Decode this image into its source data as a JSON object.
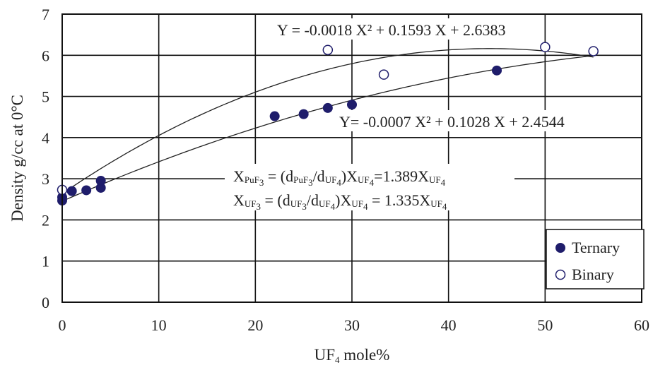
{
  "chart_data": {
    "type": "scatter",
    "xlabel": {
      "main": "UF",
      "sub": "4",
      "rest": " mole%"
    },
    "ylabel": "Density g/cc at 0°C",
    "xlim": [
      0,
      60
    ],
    "ylim": [
      0,
      7
    ],
    "xticks": [
      0,
      10,
      20,
      30,
      40,
      50,
      60
    ],
    "yticks": [
      0,
      1,
      2,
      3,
      4,
      5,
      6,
      7
    ],
    "grid": true,
    "legend_position": "bottom-right",
    "series": [
      {
        "name": "Ternary",
        "marker": "filled-circle",
        "color": "#1f1d6b",
        "points": [
          [
            0,
            2.47
          ],
          [
            0,
            2.55
          ],
          [
            1,
            2.7
          ],
          [
            2.5,
            2.72
          ],
          [
            4,
            2.78
          ],
          [
            4,
            2.95
          ],
          [
            22,
            4.52
          ],
          [
            25,
            4.57
          ],
          [
            27.5,
            4.72
          ],
          [
            30,
            4.8
          ],
          [
            45,
            5.63
          ]
        ]
      },
      {
        "name": "Binary",
        "marker": "open-circle",
        "color": "#1f1d6b",
        "points": [
          [
            0,
            2.73
          ],
          [
            27.5,
            6.13
          ],
          [
            33.3,
            5.53
          ],
          [
            50,
            6.2
          ],
          [
            55,
            6.1
          ]
        ]
      }
    ],
    "fits": [
      {
        "a": -0.0018,
        "b": 0.1593,
        "c": 2.6383,
        "x_range": [
          0,
          55
        ]
      },
      {
        "a": -0.0007,
        "b": 0.1028,
        "c": 2.4544,
        "x_range": [
          0,
          55
        ]
      }
    ],
    "annotations": {
      "fit_binary": "Y = -0.0018 X² + 0.1593 X + 2.6383",
      "fit_ternary": "Y= -0.0007 X² + 0.1028 X + 2.4544",
      "eq_puf3": {
        "lhs": "PuF",
        "lhs_sub": "3",
        "d1": "PuF",
        "d1_sub": "3",
        "d2": "UF",
        "d2_sub": "4",
        "rhs_main": "=1.389X",
        "rhs_sub": "UF",
        "rhs_sub2": "4"
      },
      "eq_uf3": {
        "lhs": "UF",
        "lhs_sub": "3",
        "d1": "UF",
        "d1_sub": "3",
        "d2": "UF",
        "d2_sub": "4",
        "rhs_main": " = 1.335X",
        "rhs_sub": "UF",
        "rhs_sub2": "4"
      }
    }
  }
}
